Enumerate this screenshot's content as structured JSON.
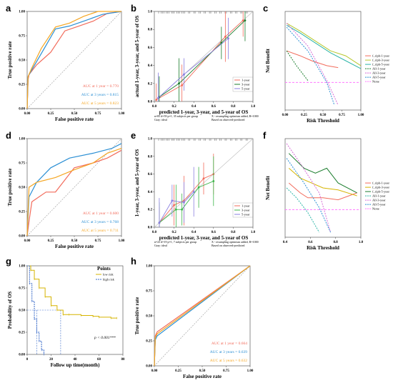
{
  "panels": [
    "a",
    "b",
    "c",
    "d",
    "e",
    "f",
    "g",
    "h"
  ],
  "colors": {
    "red": "#f26b5b",
    "blue": "#2b8fd4",
    "orange": "#f5a623",
    "olive": "#8c6d1f",
    "darkgreen": "#1b7d2d",
    "green": "#3cb54a",
    "yellowgreen": "#b7c72d",
    "teal": "#2db5a8",
    "pink": "#e04ea0",
    "magenta": "#d66bd6",
    "none": "#ff77ff",
    "purple": "#8a7fe0",
    "gold": "#d6b400",
    "navy": "#3a6bc9"
  },
  "chart_data": [
    {
      "panel": "a",
      "type": "line",
      "xlabel": "False positive rate",
      "ylabel": "True positive rate",
      "xticks": [
        "0.00",
        "0.25",
        "0.50",
        "0.75",
        "1.00"
      ],
      "yticks": [
        "0.00",
        "0.25",
        "0.50",
        "0.75",
        "1.00"
      ],
      "xlim": [
        0,
        1
      ],
      "ylim": [
        0,
        1
      ],
      "series": [
        {
          "name": "AUC at 1 year = 0.770",
          "color": "#f26b5b",
          "x": [
            0,
            0.01,
            0.02,
            0.1,
            0.25,
            0.4,
            0.55,
            0.7,
            0.85,
            1
          ],
          "y": [
            0,
            0.3,
            0.35,
            0.45,
            0.58,
            0.8,
            0.85,
            0.9,
            0.98,
            1
          ]
        },
        {
          "name": "AUC at 3 years = 0.815",
          "color": "#2b8fd4",
          "x": [
            0,
            0.01,
            0.05,
            0.2,
            0.3,
            0.45,
            0.6,
            0.8,
            1
          ],
          "y": [
            0,
            0.33,
            0.4,
            0.65,
            0.82,
            0.85,
            0.9,
            0.97,
            1
          ]
        },
        {
          "name": "AUC at 5 years = 0.823",
          "color": "#f5a623",
          "x": [
            0,
            0.01,
            0.05,
            0.15,
            0.3,
            0.45,
            0.6,
            0.75,
            1
          ],
          "y": [
            0,
            0.33,
            0.42,
            0.62,
            0.84,
            0.88,
            0.95,
            1,
            1
          ]
        }
      ]
    },
    {
      "panel": "b",
      "type": "line",
      "xlabel": "predicted 1-year, 3-year, and 5-year of OS",
      "ylabel": "actual 1-year, 3-year, and 5-year of OS",
      "xticks": [
        "0.0",
        "0.2",
        "0.4",
        "0.6",
        "0.8",
        "1.0"
      ],
      "yticks": [
        "0.0",
        "0.2",
        "0.4",
        "0.6",
        "0.8",
        "1.0"
      ],
      "xlim": [
        0,
        1
      ],
      "ylim": [
        0,
        1
      ],
      "series": [
        {
          "name": "1-year",
          "color": "#f26b5b",
          "x": [
            0.02,
            0.28,
            0.72,
            0.9
          ],
          "y": [
            0.02,
            0.18,
            0.72,
            0.9
          ]
        },
        {
          "name": "3-year",
          "color": "#1b7d2d",
          "x": [
            0.05,
            0.25,
            0.68,
            0.92
          ],
          "y": [
            0.05,
            0.2,
            0.65,
            0.9
          ]
        },
        {
          "name": "5-year",
          "color": "#8a7fe0",
          "x": [
            0.04,
            0.3,
            0.75
          ],
          "y": [
            0.04,
            0.3,
            0.7
          ]
        }
      ],
      "footnotes": [
        "n=85 d=59 p=1, 35 subjects per group",
        "Gray: ideal",
        "X - resampling optimism added, B=1000",
        "Based on observed-predicted"
      ]
    },
    {
      "panel": "c",
      "type": "line",
      "xlabel": "Risk Threshold",
      "ylabel": "Net Benefit",
      "xticks": [
        "0.00",
        "0.25",
        "0.50",
        "0.75",
        "1.00"
      ],
      "legend": [
        "f_riph-1-year",
        "f_riph-3-year",
        "f_riph-5-year",
        "All-1-year",
        "All-3-year",
        "All-5-year",
        "None"
      ],
      "legend_colors": [
        "#f26b5b",
        "#b7c72d",
        "#2db5a8",
        "#1b7d2d",
        "#d66bd6",
        "#2b8fd4",
        "#ff77ff"
      ]
    },
    {
      "panel": "d",
      "type": "line",
      "xlabel": "False positive rate",
      "ylabel": "True positive rate",
      "xticks": [
        "0.00",
        "0.25",
        "0.50",
        "0.75",
        "1.00"
      ],
      "yticks": [
        "0.00",
        "0.25",
        "0.50",
        "0.75",
        "1.00"
      ],
      "xlim": [
        0,
        1
      ],
      "ylim": [
        0,
        1
      ],
      "series": [
        {
          "name": "AUC at 1 year = 0.600",
          "color": "#f26b5b",
          "x": [
            0,
            0.02,
            0.05,
            0.2,
            0.3,
            0.5,
            0.7,
            0.85,
            1
          ],
          "y": [
            0,
            0.15,
            0.35,
            0.45,
            0.45,
            0.7,
            0.75,
            0.8,
            0.88
          ]
        },
        {
          "name": "AUC at 3 years = 0.768",
          "color": "#2b8fd4",
          "x": [
            0,
            0.02,
            0.1,
            0.25,
            0.45,
            0.7,
            0.9,
            1
          ],
          "y": [
            0,
            0.4,
            0.55,
            0.7,
            0.8,
            0.85,
            0.9,
            0.95
          ]
        },
        {
          "name": "AUC at 5 years = 0.711",
          "color": "#f5a623",
          "x": [
            0,
            0.02,
            0.1,
            0.3,
            0.5,
            0.7,
            0.85,
            1
          ],
          "y": [
            0,
            0.5,
            0.55,
            0.6,
            0.68,
            0.75,
            0.85,
            0.9
          ]
        }
      ]
    },
    {
      "panel": "e",
      "type": "line",
      "xlabel": "predicted 1-year, 3-year, and 5-year of OS",
      "ylabel": "1-year, 3-year, and 5-year of OS",
      "xticks": [
        "0.0",
        "0.2",
        "0.4",
        "0.6",
        "0.8",
        "1.0"
      ],
      "yticks": [
        "0.0",
        "0.2",
        "0.4",
        "0.6",
        "0.8",
        "1.0"
      ],
      "xlim": [
        0,
        1
      ],
      "ylim": [
        0,
        1
      ],
      "series": [
        {
          "name": "1-year",
          "color": "#f26b5b",
          "x": [
            0.05,
            0.2,
            0.3,
            0.5,
            0.6
          ],
          "y": [
            0.05,
            0.25,
            0.3,
            0.55,
            0.6
          ]
        },
        {
          "name": "3-year",
          "color": "#3cb54a",
          "x": [
            0.05,
            0.22,
            0.28,
            0.45,
            0.6
          ],
          "y": [
            0.05,
            0.2,
            0.2,
            0.45,
            0.52
          ]
        },
        {
          "name": "5-year",
          "color": "#8a7fe0",
          "x": [
            0.05,
            0.18,
            0.3,
            0.4
          ],
          "y": [
            0.05,
            0.3,
            0.28,
            0.4
          ]
        }
      ],
      "footnotes": [
        "n=23 d=19 p=1, 7 subjects per group",
        "Gray: ideal",
        "X - resampling optimism added, B=1000",
        "Based on observed-predicted"
      ]
    },
    {
      "panel": "f",
      "type": "line",
      "xlabel": "Risk Threshold",
      "ylabel": "Net Benefit",
      "xticks": [
        "0.4",
        "0.6",
        "0.8",
        "1.0"
      ],
      "legend": [
        "f_riph-1-year",
        "f_riph-3-year",
        "f_riph-5-year",
        "All-1-year",
        "All-3-year",
        "All-5-year",
        "None"
      ],
      "legend_colors": [
        "#f26b5b",
        "#d6b400",
        "#1b7d2d",
        "#2db5a8",
        "#d66bd6",
        "#2b8fd4",
        "#ff77ff"
      ]
    },
    {
      "panel": "g",
      "type": "line",
      "xlabel": "Follow up time(month)",
      "ylabel": "Probability of OS",
      "xticks": [
        "0",
        "20",
        "40",
        "60",
        "80"
      ],
      "yticks": [
        "0.00",
        "0.25",
        "0.50",
        "0.75",
        "1.00"
      ],
      "xlim": [
        0,
        80
      ],
      "ylim": [
        0,
        1
      ],
      "legend_title": "Points",
      "annotation": "p < 0.001***",
      "series": [
        {
          "name": "low risk",
          "color": "#d6b400",
          "x": [
            0,
            3,
            6,
            10,
            15,
            20,
            25,
            30,
            35,
            45,
            55,
            60,
            70,
            75
          ],
          "y": [
            1,
            0.95,
            0.85,
            0.75,
            0.65,
            0.55,
            0.5,
            0.45,
            0.45,
            0.44,
            0.43,
            0.42,
            0.41,
            0.41
          ]
        },
        {
          "name": "high risk",
          "color": "#3a6bc9",
          "x": [
            0,
            2,
            4,
            6,
            8,
            10,
            12,
            14
          ],
          "y": [
            1,
            0.8,
            0.6,
            0.4,
            0.25,
            0.15,
            0.05,
            0
          ]
        }
      ]
    },
    {
      "panel": "h",
      "type": "line",
      "xlabel": "False positive rate",
      "ylabel": "True positive rate",
      "xticks": [
        "0.00",
        "0.25",
        "0.50",
        "0.75",
        "1.00"
      ],
      "yticks": [
        "0.00",
        "0.25",
        "0.50",
        "0.75",
        "1.00"
      ],
      "xlim": [
        0,
        1
      ],
      "ylim": [
        0,
        1
      ],
      "series": [
        {
          "name": "AUC at 1 year = 0.664",
          "color": "#f26b5b",
          "x": [
            0,
            0.01,
            0.03,
            1
          ],
          "y": [
            0,
            0.3,
            0.34,
            1
          ]
        },
        {
          "name": "AUC at 3 years = 0.639",
          "color": "#2b8fd4",
          "x": [
            0,
            0.01,
            0.03,
            1
          ],
          "y": [
            0,
            0.26,
            0.3,
            1
          ]
        },
        {
          "name": "AUC at 5 years = 0.632",
          "color": "#f5a623",
          "x": [
            0,
            0.01,
            0.03,
            1
          ],
          "y": [
            0,
            0.28,
            0.32,
            1
          ]
        }
      ]
    }
  ]
}
